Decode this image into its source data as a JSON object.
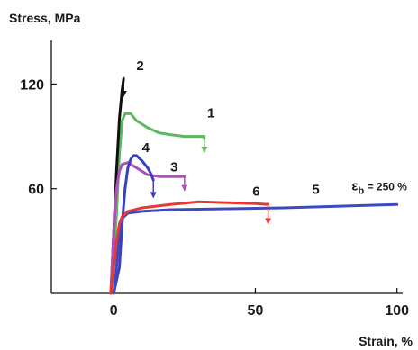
{
  "chart_data": {
    "type": "line",
    "ylabel": "Stress, MPa",
    "xlabel": "Strain, %",
    "xlim": [
      -22,
      102
    ],
    "ylim": [
      0,
      145
    ],
    "xticks": [
      0,
      50,
      100
    ],
    "xtick_labels": [
      "0",
      "50",
      "100"
    ],
    "yticks": [
      60,
      120
    ],
    "ytick_labels": [
      "60",
      "120"
    ],
    "grid": false,
    "legend": "none",
    "annotation": {
      "text_main": "ε",
      "text_sub": "b",
      "text_rest": " = 250 %",
      "x": 84,
      "y": 59
    },
    "series": [
      {
        "name": "1",
        "color": "#5cb85c",
        "label_pos": [
          33,
          101
        ],
        "break_marker": {
          "x": 32,
          "y": 89,
          "y_to": 81
        },
        "points": [
          [
            -1,
            0
          ],
          [
            1,
            45
          ],
          [
            2,
            80
          ],
          [
            3,
            99
          ],
          [
            4,
            103
          ],
          [
            6,
            103
          ],
          [
            8,
            99
          ],
          [
            12,
            95
          ],
          [
            16,
            92
          ],
          [
            20,
            91
          ],
          [
            25,
            90
          ],
          [
            29,
            90
          ],
          [
            32,
            90
          ],
          [
            32,
            89
          ]
        ]
      },
      {
        "name": "2",
        "color": "#111111",
        "label_pos": [
          8,
          128
        ],
        "break_marker": {
          "x": 3.5,
          "y": 124,
          "y_to": 113
        },
        "points": [
          [
            -1,
            0
          ],
          [
            0,
            35
          ],
          [
            1,
            70
          ],
          [
            2,
            100
          ],
          [
            3,
            117
          ],
          [
            3.5,
            123
          ]
        ]
      },
      {
        "name": "3",
        "color": "#b04fbb",
        "label_pos": [
          20,
          70
        ],
        "break_marker": {
          "x": 25,
          "y": 67,
          "y_to": 59
        },
        "points": [
          [
            -1,
            0
          ],
          [
            0,
            35
          ],
          [
            1,
            60
          ],
          [
            2,
            70
          ],
          [
            3,
            74
          ],
          [
            5,
            75
          ],
          [
            8,
            72
          ],
          [
            12,
            68
          ],
          [
            16,
            67
          ],
          [
            20,
            67
          ],
          [
            25,
            67
          ]
        ]
      },
      {
        "name": "4",
        "color": "#3b3fbf",
        "label_pos": [
          10,
          81
        ],
        "break_marker": {
          "x": 14,
          "y": 65,
          "y_to": 55
        },
        "points": [
          [
            0,
            0
          ],
          [
            2,
            15
          ],
          [
            3,
            40
          ],
          [
            4,
            60
          ],
          [
            5,
            72
          ],
          [
            6,
            77
          ],
          [
            7,
            79
          ],
          [
            8,
            79
          ],
          [
            10,
            76
          ],
          [
            12,
            72
          ],
          [
            13,
            69
          ],
          [
            14,
            65
          ]
        ]
      },
      {
        "name": "5",
        "color": "#3b4bbf",
        "label_pos": [
          70,
          57
        ],
        "break_marker": null,
        "points": [
          [
            0,
            0
          ],
          [
            1,
            15
          ],
          [
            2,
            35
          ],
          [
            3,
            43
          ],
          [
            5,
            46
          ],
          [
            10,
            47
          ],
          [
            20,
            48
          ],
          [
            40,
            48.5
          ],
          [
            60,
            49
          ],
          [
            80,
            50
          ],
          [
            100,
            51
          ]
        ]
      },
      {
        "name": "6",
        "color": "#e53935",
        "label_pos": [
          49,
          56
        ],
        "break_marker": {
          "x": 54.5,
          "y": 52,
          "y_to": 40
        },
        "points": [
          [
            -1,
            0
          ],
          [
            1,
            30
          ],
          [
            2,
            40
          ],
          [
            3,
            44
          ],
          [
            5,
            47
          ],
          [
            10,
            49
          ],
          [
            20,
            51
          ],
          [
            30,
            52.5
          ],
          [
            40,
            52
          ],
          [
            50,
            51.5
          ],
          [
            54.5,
            51
          ]
        ]
      }
    ]
  }
}
